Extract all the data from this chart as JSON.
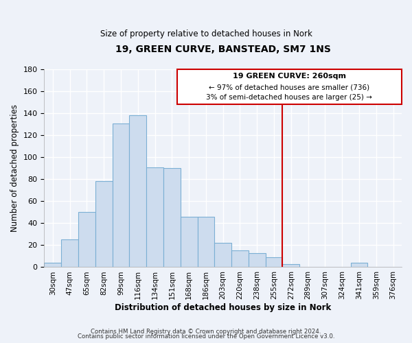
{
  "title": "19, GREEN CURVE, BANSTEAD, SM7 1NS",
  "subtitle": "Size of property relative to detached houses in Nork",
  "xlabel": "Distribution of detached houses by size in Nork",
  "ylabel": "Number of detached properties",
  "footnote1": "Contains HM Land Registry data © Crown copyright and database right 2024.",
  "footnote2": "Contains public sector information licensed under the Open Government Licence v3.0.",
  "bar_labels": [
    "30sqm",
    "47sqm",
    "65sqm",
    "82sqm",
    "99sqm",
    "116sqm",
    "134sqm",
    "151sqm",
    "168sqm",
    "186sqm",
    "203sqm",
    "220sqm",
    "238sqm",
    "255sqm",
    "272sqm",
    "289sqm",
    "307sqm",
    "324sqm",
    "341sqm",
    "359sqm",
    "376sqm"
  ],
  "bar_values": [
    4,
    25,
    50,
    78,
    131,
    138,
    91,
    90,
    46,
    46,
    22,
    15,
    13,
    9,
    3,
    0,
    0,
    0,
    4,
    0,
    0
  ],
  "bar_color": "#cddcee",
  "bar_edge_color": "#7bafd4",
  "ref_line_label": "19 GREEN CURVE: 260sqm",
  "ref_line_color": "#cc0000",
  "annotation_line1": "← 97% of detached houses are smaller (736)",
  "annotation_line2": "3% of semi-detached houses are larger (25) →",
  "box_edge_color": "#cc0000",
  "ylim": [
    0,
    180
  ],
  "yticks": [
    0,
    20,
    40,
    60,
    80,
    100,
    120,
    140,
    160,
    180
  ],
  "background_color": "#eef2f9",
  "grid_color": "#ffffff",
  "title_fontsize": 10,
  "subtitle_fontsize": 8.5
}
